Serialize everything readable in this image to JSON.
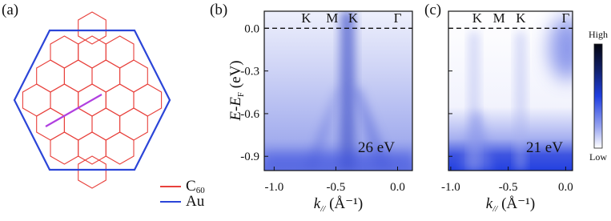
{
  "panel_a": {
    "label": "(a)",
    "legend": [
      {
        "name": "C",
        "subscript": "60",
        "color": "#e8413c"
      },
      {
        "name": "Au",
        "color": "#2b45d8"
      }
    ]
  },
  "energy_axis": {
    "label": {
      "text": "E-E",
      "subscript": "F",
      "unit": " (eV)"
    },
    "ylim": [
      -1.0,
      0.12
    ],
    "yticks": [
      {
        "value": 0,
        "label": "0.0"
      },
      {
        "value": -0.3,
        "label": "-0.3"
      },
      {
        "value": -0.6,
        "label": "-0.6"
      },
      {
        "value": -0.9,
        "label": "-0.9"
      }
    ]
  },
  "momentum_axis": {
    "label": {
      "text": "k",
      "subscript": "//",
      "unit": " (Å⁻¹)"
    }
  },
  "panels": [
    {
      "label": "(b)",
      "photon_energy": "26 eV",
      "symmetry_points": [
        "K",
        "M",
        "K",
        "Γ"
      ],
      "xlim": [
        -1.08,
        0.12
      ],
      "xticks": [
        {
          "value": -1,
          "label": "-1.0"
        },
        {
          "value": -0.5,
          "label": "-0.5"
        },
        {
          "value": 0,
          "label": "0.0"
        }
      ]
    },
    {
      "label": "(c)",
      "photon_energy": "21 eV",
      "symmetry_points": [
        "K",
        "M",
        "K",
        "Γ"
      ],
      "xlim": [
        -1.02,
        0.06
      ],
      "xticks": [
        {
          "value": -1,
          "label": "-1.0"
        },
        {
          "value": -0.5,
          "label": "-0.5"
        },
        {
          "value": 0,
          "label": "0.0"
        }
      ]
    }
  ],
  "colorbar": {
    "high": "High",
    "low": "Low"
  }
}
